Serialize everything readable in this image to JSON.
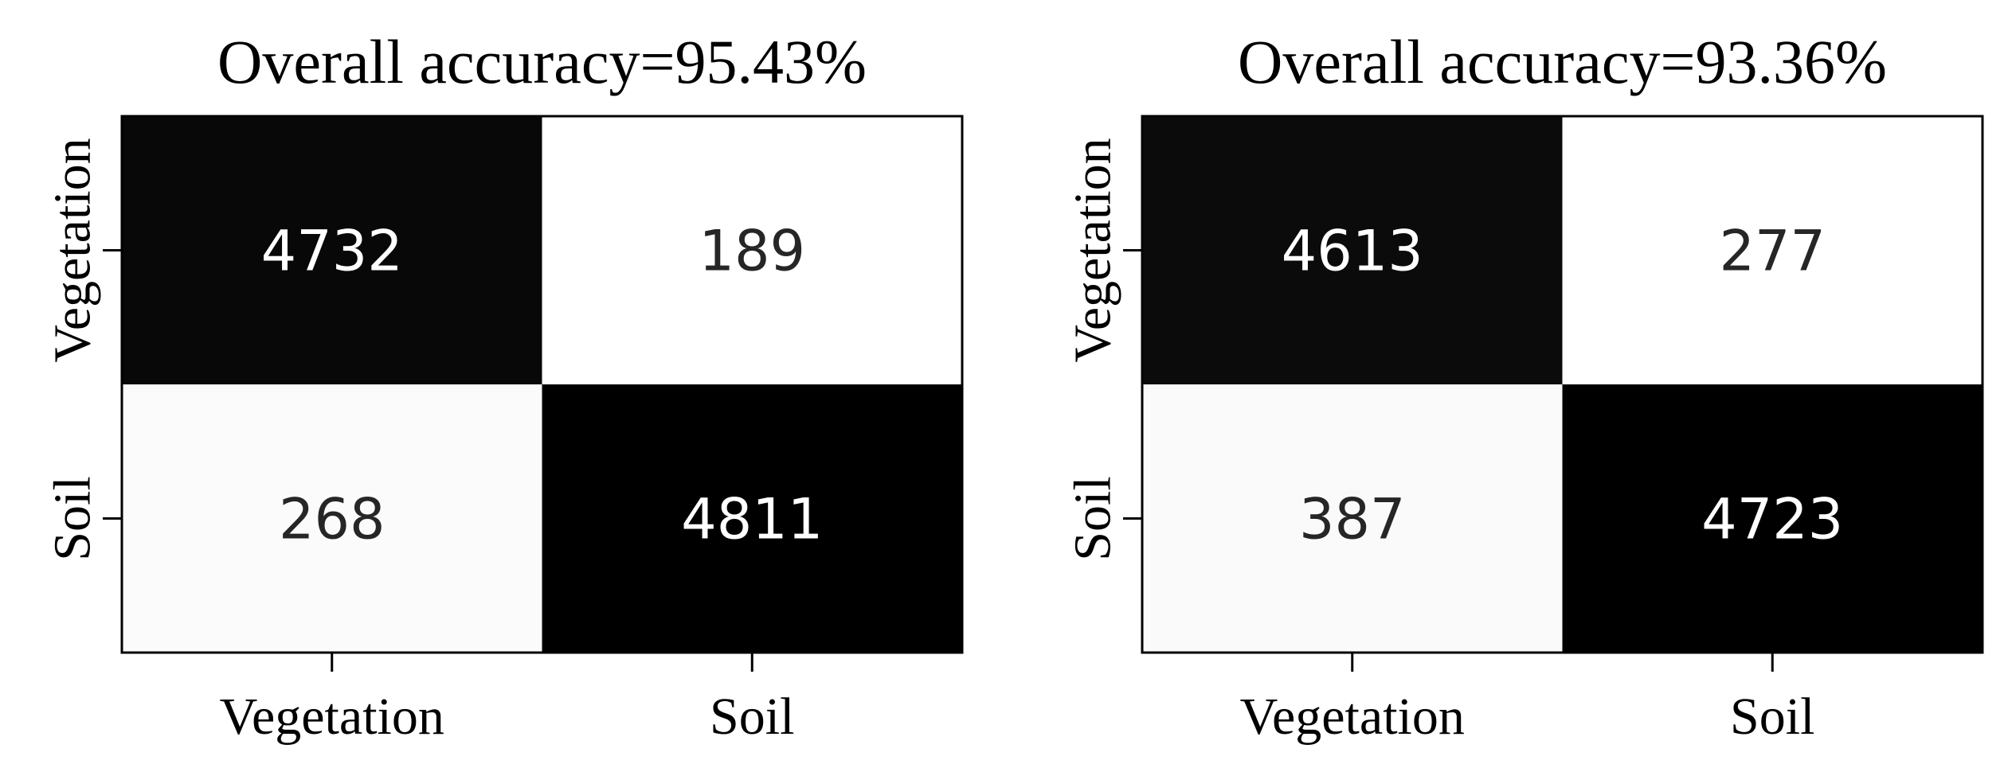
{
  "chart_data": [
    {
      "type": "heatmap",
      "title": "Overall accuracy=95.43%",
      "x_categories": [
        "Vegetation",
        "Soil"
      ],
      "y_categories": [
        "Vegetation",
        "Soil"
      ],
      "values": [
        [
          4732,
          189
        ],
        [
          268,
          4811
        ]
      ],
      "colormap": "greys",
      "colorbar": false,
      "grid": false
    },
    {
      "type": "heatmap",
      "title": "Overall accuracy=93.36%",
      "x_categories": [
        "Vegetation",
        "Soil"
      ],
      "y_categories": [
        "Vegetation",
        "Soil"
      ],
      "values": [
        [
          4613,
          277
        ],
        [
          387,
          4723
        ]
      ],
      "colormap": "greys",
      "colorbar": false,
      "grid": false
    }
  ],
  "colors": {
    "high": "#000000",
    "low": "#ffffff",
    "text_on_dark": "#ffffff",
    "text_on_light": "#262626",
    "frame": "#000000"
  }
}
